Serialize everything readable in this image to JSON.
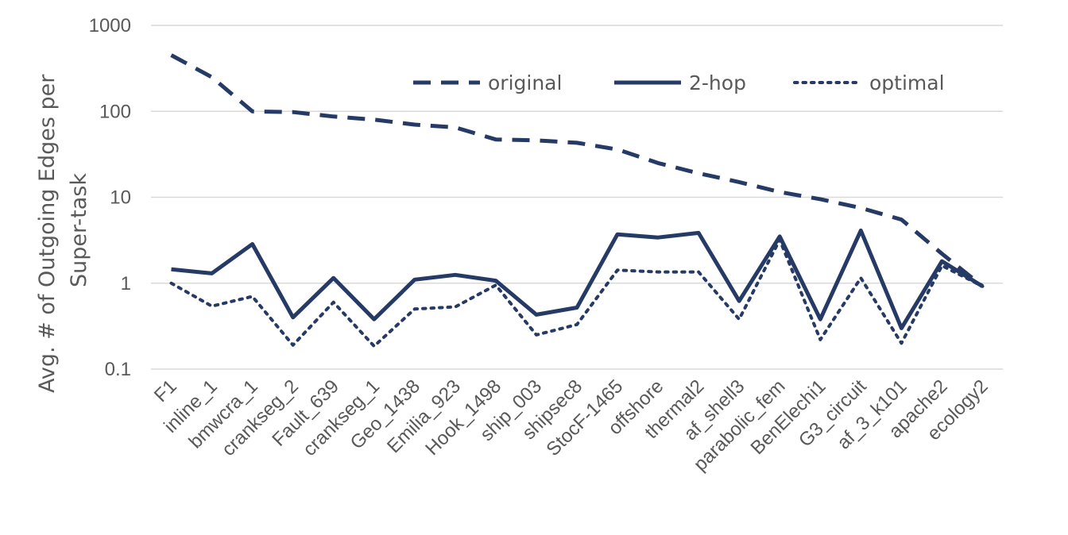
{
  "chart_data": {
    "type": "line",
    "title": "",
    "xlabel": "",
    "ylabel_lines": [
      "Avg.  #  of Outgoing Edges per",
      "Super-task"
    ],
    "y_scale": "log",
    "ylim": [
      0.1,
      1000
    ],
    "y_ticks": [
      "0.1",
      "1",
      "10",
      "100",
      "1000"
    ],
    "grid": "horizontal",
    "legend_position": "top-right",
    "series_color": "#263A66",
    "categories": [
      "F1",
      "inline_1",
      "bmwcra_1",
      "crankseg_2",
      "Fault_639",
      "crankseg_1",
      "Geo_1438",
      "Emilia_923",
      "Hook_1498",
      "ship_003",
      "shipsec8",
      "StocF-1465",
      "offshore",
      "thermal2",
      "af_shell3",
      "parabolic_fem",
      "BenElechi1",
      "G3_circuit",
      "af_3_k101",
      "apache2",
      "ecology2"
    ],
    "series": [
      {
        "name": "original",
        "style": "dashed",
        "values": [
          450,
          250,
          100,
          98,
          87,
          80,
          70,
          65,
          47,
          46,
          43,
          36,
          25,
          19,
          15,
          11.5,
          9.5,
          7.5,
          5.5,
          2.2,
          0.92
        ]
      },
      {
        "name": "2-hop",
        "style": "solid",
        "values": [
          1.45,
          1.3,
          2.85,
          0.4,
          1.15,
          0.38,
          1.1,
          1.25,
          1.07,
          0.43,
          0.52,
          3.7,
          3.4,
          3.85,
          0.62,
          3.5,
          0.38,
          4.1,
          0.3,
          1.8,
          0.92
        ]
      },
      {
        "name": "optimal",
        "style": "dotted",
        "values": [
          1.0,
          0.54,
          0.7,
          0.19,
          0.6,
          0.185,
          0.5,
          0.53,
          0.95,
          0.25,
          0.33,
          1.42,
          1.35,
          1.35,
          0.38,
          3.2,
          0.22,
          1.15,
          0.2,
          1.6,
          0.92
        ]
      }
    ]
  }
}
